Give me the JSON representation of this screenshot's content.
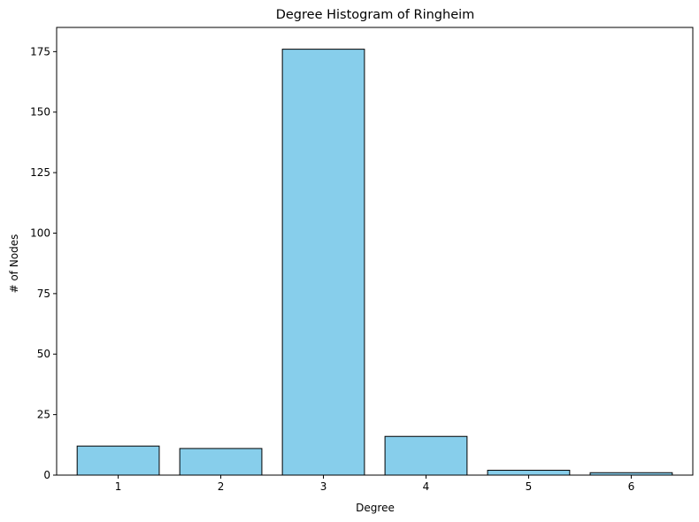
{
  "chart_data": {
    "type": "bar",
    "title": "Degree Histogram of Ringheim",
    "xlabel": "Degree",
    "ylabel": "# of Nodes",
    "categories": [
      "1",
      "2",
      "3",
      "4",
      "5",
      "6"
    ],
    "x": [
      1,
      2,
      3,
      4,
      5,
      6
    ],
    "values": [
      12,
      11,
      176,
      16,
      2,
      1
    ],
    "ylim": [
      0,
      185
    ],
    "yticks": [
      0,
      25,
      50,
      75,
      100,
      125,
      150,
      175
    ],
    "grid": false,
    "legend": "none",
    "colors": {
      "bar_fill": "#87ceeb",
      "bar_edge": "#000000",
      "axis": "#000000"
    }
  }
}
